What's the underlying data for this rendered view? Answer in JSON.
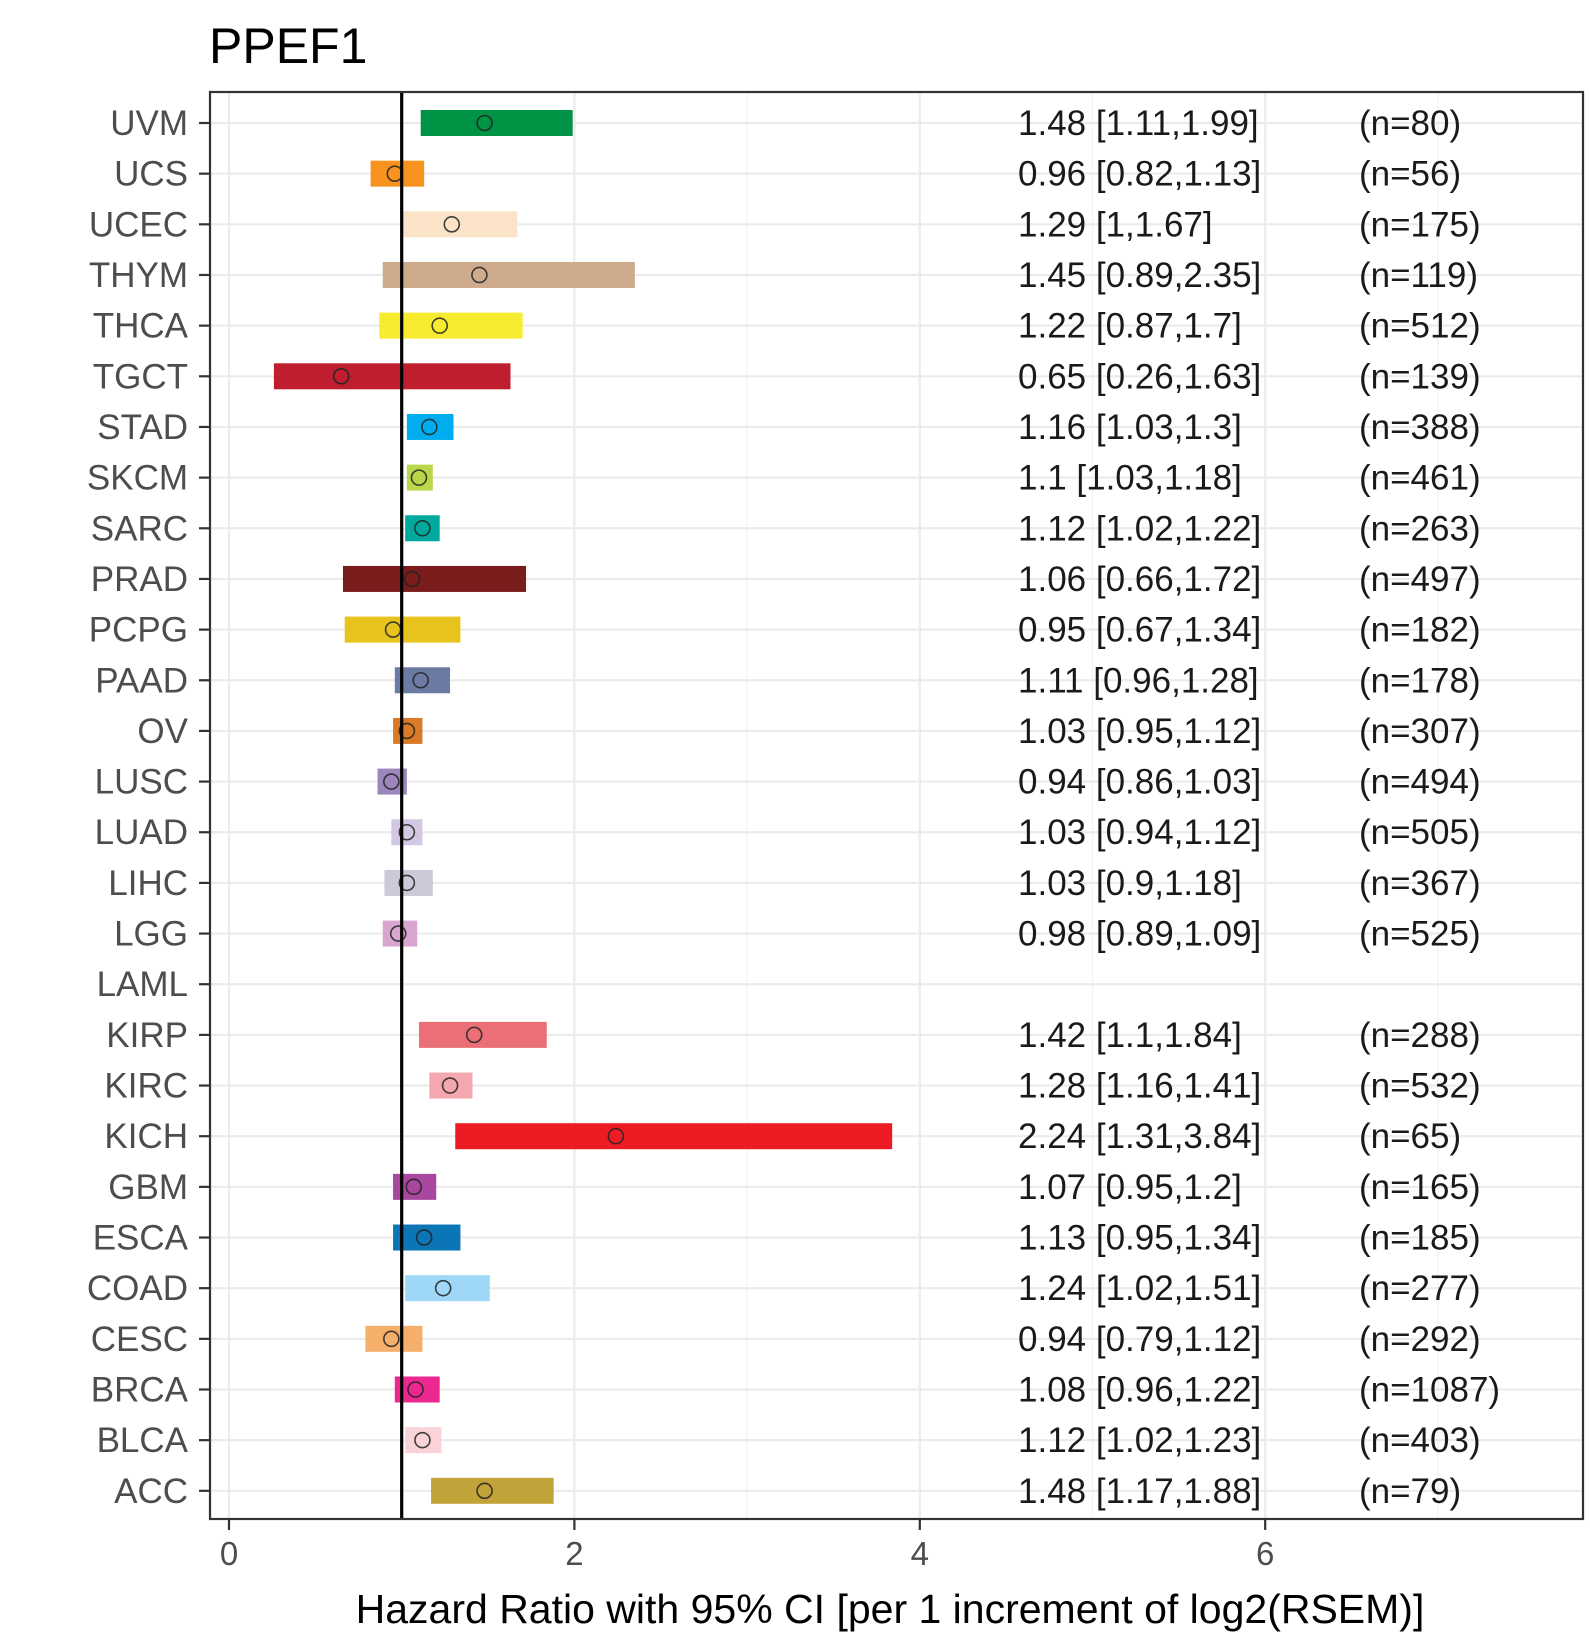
{
  "chart_data": {
    "type": "forest",
    "title": "PPEF1",
    "xlabel": "Hazard Ratio with 95% CI [per 1 increment of log2(RSEM)]",
    "xlim": [
      -0.1,
      7.6
    ],
    "xticks": [
      0,
      2,
      4,
      6
    ],
    "xtick_labels": [
      "0",
      "2",
      "4",
      "6"
    ],
    "reference_line": 1,
    "rows": [
      {
        "cancer": "UVM",
        "hr": 1.48,
        "lo": 1.11,
        "hi": 1.99,
        "label": "1.48 [1.11,1.99]",
        "n": "(n=80)",
        "color": "#009245"
      },
      {
        "cancer": "UCS",
        "hr": 0.96,
        "lo": 0.82,
        "hi": 1.13,
        "label": "0.96 [0.82,1.13]",
        "n": "(n=56)",
        "color": "#F7931E"
      },
      {
        "cancer": "UCEC",
        "hr": 1.29,
        "lo": 1.0,
        "hi": 1.67,
        "label": "1.29 [1,1.67]",
        "n": "(n=175)",
        "color": "#FBE3C8"
      },
      {
        "cancer": "THYM",
        "hr": 1.45,
        "lo": 0.89,
        "hi": 2.35,
        "label": "1.45 [0.89,2.35]",
        "n": "(n=119)",
        "color": "#CDAB8C"
      },
      {
        "cancer": "THCA",
        "hr": 1.22,
        "lo": 0.87,
        "hi": 1.7,
        "label": "1.22 [0.87,1.7]",
        "n": "(n=512)",
        "color": "#F8EC30"
      },
      {
        "cancer": "TGCT",
        "hr": 0.65,
        "lo": 0.26,
        "hi": 1.63,
        "label": "0.65 [0.26,1.63]",
        "n": "(n=139)",
        "color": "#BE1E2D"
      },
      {
        "cancer": "STAD",
        "hr": 1.16,
        "lo": 1.03,
        "hi": 1.3,
        "label": "1.16 [1.03,1.3]",
        "n": "(n=388)",
        "color": "#00AEEF"
      },
      {
        "cancer": "SKCM",
        "hr": 1.1,
        "lo": 1.03,
        "hi": 1.18,
        "label": "1.1 [1.03,1.18]",
        "n": "(n=461)",
        "color": "#BAD649"
      },
      {
        "cancer": "SARC",
        "hr": 1.12,
        "lo": 1.02,
        "hi": 1.22,
        "label": "1.12 [1.02,1.22]",
        "n": "(n=263)",
        "color": "#00A99D"
      },
      {
        "cancer": "PRAD",
        "hr": 1.06,
        "lo": 0.66,
        "hi": 1.72,
        "label": "1.06 [0.66,1.72]",
        "n": "(n=497)",
        "color": "#7B1C1C"
      },
      {
        "cancer": "PCPG",
        "hr": 0.95,
        "lo": 0.67,
        "hi": 1.34,
        "label": "0.95 [0.67,1.34]",
        "n": "(n=182)",
        "color": "#E8C31E"
      },
      {
        "cancer": "PAAD",
        "hr": 1.11,
        "lo": 0.96,
        "hi": 1.28,
        "label": "1.11 [0.96,1.28]",
        "n": "(n=178)",
        "color": "#6B7BA4"
      },
      {
        "cancer": "OV",
        "hr": 1.03,
        "lo": 0.95,
        "hi": 1.12,
        "label": "1.03 [0.95,1.12]",
        "n": "(n=307)",
        "color": "#D97A28"
      },
      {
        "cancer": "LUSC",
        "hr": 0.94,
        "lo": 0.86,
        "hi": 1.03,
        "label": "0.94 [0.86,1.03]",
        "n": "(n=494)",
        "color": "#9D86BB"
      },
      {
        "cancer": "LUAD",
        "hr": 1.03,
        "lo": 0.94,
        "hi": 1.12,
        "label": "1.03 [0.94,1.12]",
        "n": "(n=505)",
        "color": "#D3C8E3"
      },
      {
        "cancer": "LIHC",
        "hr": 1.03,
        "lo": 0.9,
        "hi": 1.18,
        "label": "1.03 [0.9,1.18]",
        "n": "(n=367)",
        "color": "#CACAD9"
      },
      {
        "cancer": "LGG",
        "hr": 0.98,
        "lo": 0.89,
        "hi": 1.09,
        "label": "0.98 [0.89,1.09]",
        "n": "(n=525)",
        "color": "#D8A6CF"
      },
      {
        "cancer": "LAML",
        "hr": null,
        "lo": null,
        "hi": null,
        "label": "",
        "n": "",
        "color": "#FFFFFF"
      },
      {
        "cancer": "KIRP",
        "hr": 1.42,
        "lo": 1.1,
        "hi": 1.84,
        "label": "1.42 [1.1,1.84]",
        "n": "(n=288)",
        "color": "#EB6F77"
      },
      {
        "cancer": "KIRC",
        "hr": 1.28,
        "lo": 1.16,
        "hi": 1.41,
        "label": "1.28 [1.16,1.41]",
        "n": "(n=532)",
        "color": "#F4A7AF"
      },
      {
        "cancer": "KICH",
        "hr": 2.24,
        "lo": 1.31,
        "hi": 3.84,
        "label": "2.24 [1.31,3.84]",
        "n": "(n=65)",
        "color": "#ED1C24"
      },
      {
        "cancer": "GBM",
        "hr": 1.07,
        "lo": 0.95,
        "hi": 1.2,
        "label": "1.07 [0.95,1.2]",
        "n": "(n=165)",
        "color": "#A8479D"
      },
      {
        "cancer": "ESCA",
        "hr": 1.13,
        "lo": 0.95,
        "hi": 1.34,
        "label": "1.13 [0.95,1.34]",
        "n": "(n=185)",
        "color": "#0B75B6"
      },
      {
        "cancer": "COAD",
        "hr": 1.24,
        "lo": 1.02,
        "hi": 1.51,
        "label": "1.24 [1.02,1.51]",
        "n": "(n=277)",
        "color": "#9FD8F7"
      },
      {
        "cancer": "CESC",
        "hr": 0.94,
        "lo": 0.79,
        "hi": 1.12,
        "label": "0.94 [0.79,1.12]",
        "n": "(n=292)",
        "color": "#F5AF6A"
      },
      {
        "cancer": "BRCA",
        "hr": 1.08,
        "lo": 0.96,
        "hi": 1.22,
        "label": "1.08 [0.96,1.22]",
        "n": "(n=1087)",
        "color": "#EC2890"
      },
      {
        "cancer": "BLCA",
        "hr": 1.12,
        "lo": 1.02,
        "hi": 1.23,
        "label": "1.12 [1.02,1.23]",
        "n": "(n=403)",
        "color": "#F9D3D8"
      },
      {
        "cancer": "ACC",
        "hr": 1.48,
        "lo": 1.17,
        "hi": 1.88,
        "label": "1.48 [1.17,1.88]",
        "n": "(n=79)",
        "color": "#C2A33A"
      }
    ]
  }
}
